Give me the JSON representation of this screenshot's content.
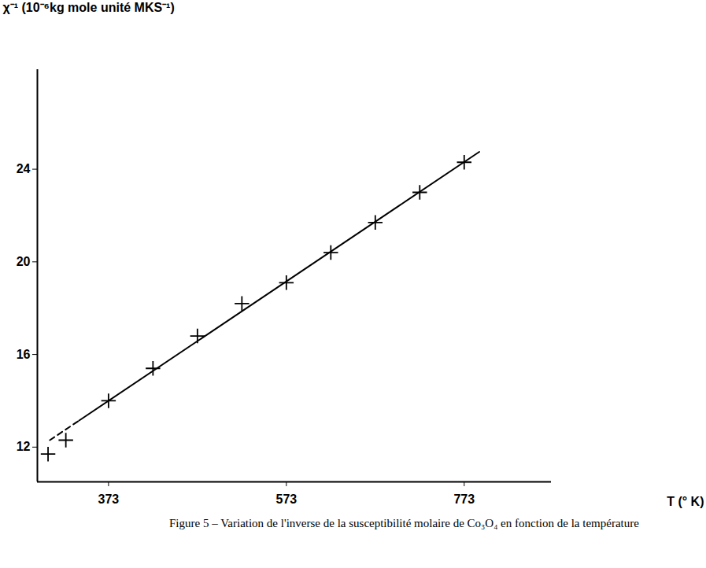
{
  "chart_data": {
    "type": "scatter",
    "caption": "Figure 5 – Variation de l'inverse de la susceptibilité molaire de Co₃O₄ en fonction de la température",
    "y_label": "χ⁻¹ (10⁻⁶kg mole unité MKS⁻¹)",
    "x_label": "T (° K)",
    "xlim": [
      293,
      871
    ],
    "xticks": [
      373,
      573,
      773
    ],
    "ylim": [
      10.5,
      28.3
    ],
    "yticks": [
      12,
      16,
      20,
      24
    ],
    "grid": false,
    "series": [
      {
        "type": "scatter",
        "marker": "plus",
        "color": "#000000",
        "x": [
          305,
          325,
          373,
          423,
          473,
          523,
          573,
          623,
          673,
          723,
          773
        ],
        "values": [
          11.7,
          12.3,
          14.0,
          15.4,
          16.8,
          18.2,
          19.1,
          20.4,
          21.7,
          23.0,
          24.3
        ]
      },
      {
        "type": "line",
        "line_style": "dashed",
        "color": "#000000",
        "x": [
          307,
          340
        ],
        "values": [
          12.3,
          13.15
        ]
      },
      {
        "type": "line",
        "line_style": "solid",
        "color": "#000000",
        "x": [
          340,
          790
        ],
        "values": [
          13.15,
          24.75
        ]
      }
    ]
  }
}
